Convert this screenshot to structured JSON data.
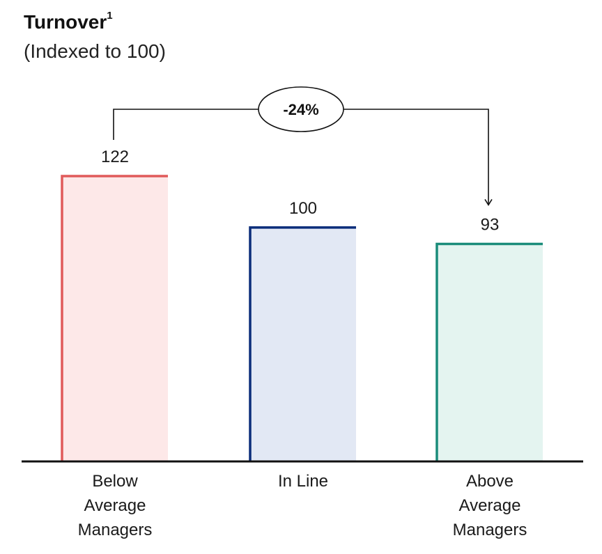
{
  "chart_data": {
    "type": "bar",
    "title": "Turnover",
    "title_superscript": "1",
    "subtitle": "(Indexed to 100)",
    "categories": [
      [
        "Below",
        "Average",
        "Managers"
      ],
      [
        "In Line"
      ],
      [
        "Above",
        "Average",
        "Managers"
      ]
    ],
    "values": [
      122,
      100,
      93
    ],
    "value_labels": [
      "122",
      "100",
      "93"
    ],
    "ylim": [
      0,
      122
    ],
    "grid": false,
    "colors": [
      {
        "stroke": "#e05a5a",
        "fill": "#fde8e8"
      },
      {
        "stroke": "#0b2d7a",
        "fill": "#e2e8f4"
      },
      {
        "stroke": "#1a8c7a",
        "fill": "#e4f4f0"
      }
    ],
    "annotation": {
      "text": "-24%",
      "from_index": 0,
      "to_index": 2
    }
  }
}
